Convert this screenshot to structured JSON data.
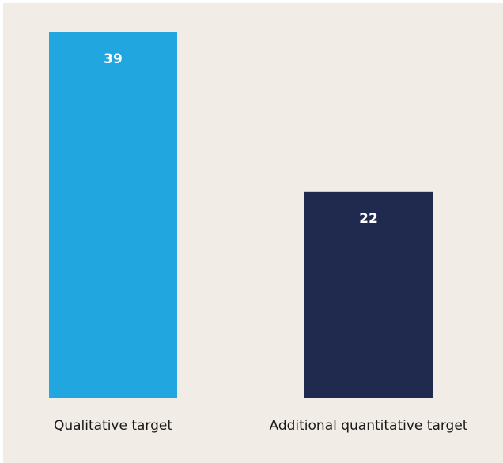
{
  "chart_data": {
    "type": "bar",
    "categories": [
      "Qualitative target",
      "Additional quantitative target"
    ],
    "values": [
      39,
      22
    ],
    "colors": [
      "#22a6e0",
      "#1f2a4e"
    ]
  }
}
